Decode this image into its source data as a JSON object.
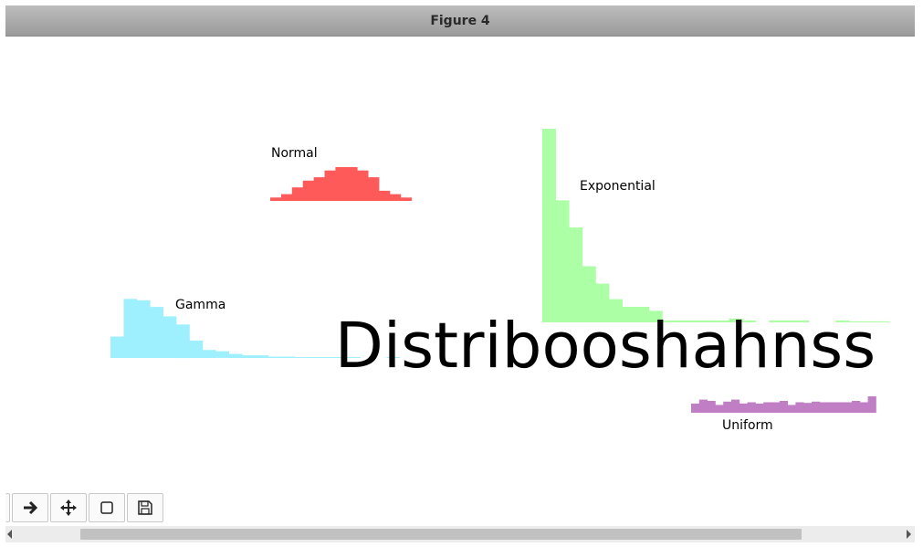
{
  "window": {
    "title": "Figure 4"
  },
  "chart_data": {
    "type": "bar",
    "title": "Distribooshahnss",
    "grid": false,
    "series": [
      {
        "name": "Normal",
        "color": "#ff5a5a",
        "values": [
          1,
          2,
          4,
          6,
          7,
          9,
          10,
          10,
          9,
          7,
          3,
          2,
          1
        ]
      },
      {
        "name": "Exponential",
        "color": "#adffa6",
        "values": [
          100,
          63,
          49,
          29,
          20,
          12,
          8,
          8,
          6,
          1,
          1,
          1,
          1,
          1,
          2,
          1,
          0,
          1,
          1,
          1,
          0,
          0,
          1,
          0.5,
          0.5,
          0.5
        ]
      },
      {
        "name": "Gamma",
        "color": "#9ff0ff",
        "values": [
          16,
          44,
          43,
          38,
          31,
          25,
          13,
          6,
          5,
          3,
          2,
          2,
          1,
          1,
          0.5,
          0.5,
          0.5,
          0.5,
          0.5,
          0,
          0,
          0.5
        ]
      },
      {
        "name": "Uniform",
        "color": "#c07ec4",
        "values": [
          14,
          20,
          18,
          12,
          17,
          20,
          14,
          16,
          14,
          16,
          16,
          18,
          12,
          16,
          15,
          17,
          16,
          16,
          16,
          16,
          18,
          16,
          25
        ]
      }
    ]
  },
  "toolbar": {
    "buttons": [
      {
        "name": "forward",
        "icon": "arrow-right-icon"
      },
      {
        "name": "pan",
        "icon": "move-icon"
      },
      {
        "name": "zoom",
        "icon": "zoom-rect-icon"
      },
      {
        "name": "save",
        "icon": "save-icon"
      }
    ]
  }
}
